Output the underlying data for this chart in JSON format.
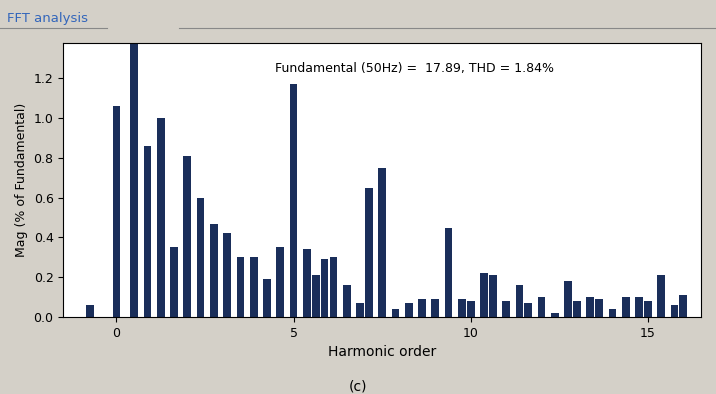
{
  "title": "FFT analysis",
  "subtitle": "Fundamental (50Hz) =  17.89, THD = 1.84%",
  "xlabel": "Harmonic order",
  "ylabel": "Mag (% of Fundamental)",
  "bar_color": "#1a2e5a",
  "background_color": "#d4d0c8",
  "plot_bg_color": "#ffffff",
  "title_color": "#3366bb",
  "caption": "(c)",
  "ylim": [
    0,
    1.38
  ],
  "yticks": [
    0,
    0.2,
    0.4,
    0.6,
    0.8,
    1.0,
    1.2
  ],
  "xlim": [
    -1.5,
    16.5
  ],
  "xticks": [
    0,
    5,
    10,
    15
  ],
  "bar_width": 0.22,
  "bar_positions": [
    -0.75,
    0.0,
    0.5,
    0.875,
    1.25,
    1.625,
    2.0,
    2.375,
    2.75,
    3.125,
    3.5,
    3.875,
    4.25,
    4.625,
    5.0,
    5.375,
    5.625,
    5.875,
    6.125,
    6.5,
    6.875,
    7.125,
    7.5,
    7.875,
    8.25,
    8.625,
    9.0,
    9.375,
    9.75,
    10.0,
    10.375,
    10.625,
    11.0,
    11.375,
    11.625,
    12.0,
    12.375,
    12.75,
    13.0,
    13.375,
    13.625,
    14.0,
    14.375,
    14.75,
    15.0,
    15.375,
    15.75,
    16.0
  ],
  "bar_heights": [
    0.06,
    1.06,
    1.4,
    0.86,
    1.0,
    0.35,
    0.81,
    0.6,
    0.47,
    0.42,
    0.3,
    0.3,
    0.19,
    0.35,
    1.17,
    0.34,
    0.21,
    0.29,
    0.3,
    0.16,
    0.07,
    0.65,
    0.75,
    0.04,
    0.07,
    0.09,
    0.09,
    0.45,
    0.09,
    0.08,
    0.22,
    0.21,
    0.08,
    0.16,
    0.07,
    0.1,
    0.02,
    0.18,
    0.08,
    0.1,
    0.09,
    0.04,
    0.1,
    0.1,
    0.08,
    0.21,
    0.06,
    0.11
  ]
}
